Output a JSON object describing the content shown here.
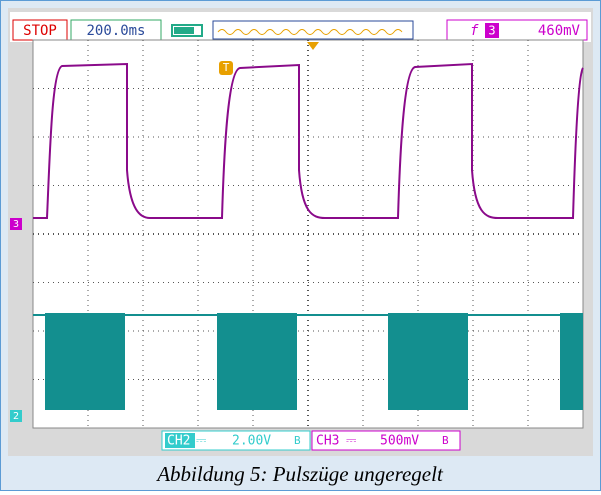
{
  "status": {
    "state": "STOP",
    "timebase": "200.0ms",
    "trigger_channel": "3",
    "trigger_level": "460mV"
  },
  "channels": [
    {
      "name": "CH2",
      "coupling_symbol": "⎓",
      "scale": "2.00V",
      "coupling": "B"
    },
    {
      "name": "CH3",
      "coupling_symbol": "⎓",
      "scale": "500mV",
      "coupling": "B"
    }
  ],
  "markers": {
    "trigger": "T",
    "ch3": "3",
    "ch2": "2"
  },
  "caption": "Abbildung 5: Pulszüge ungeregelt"
}
